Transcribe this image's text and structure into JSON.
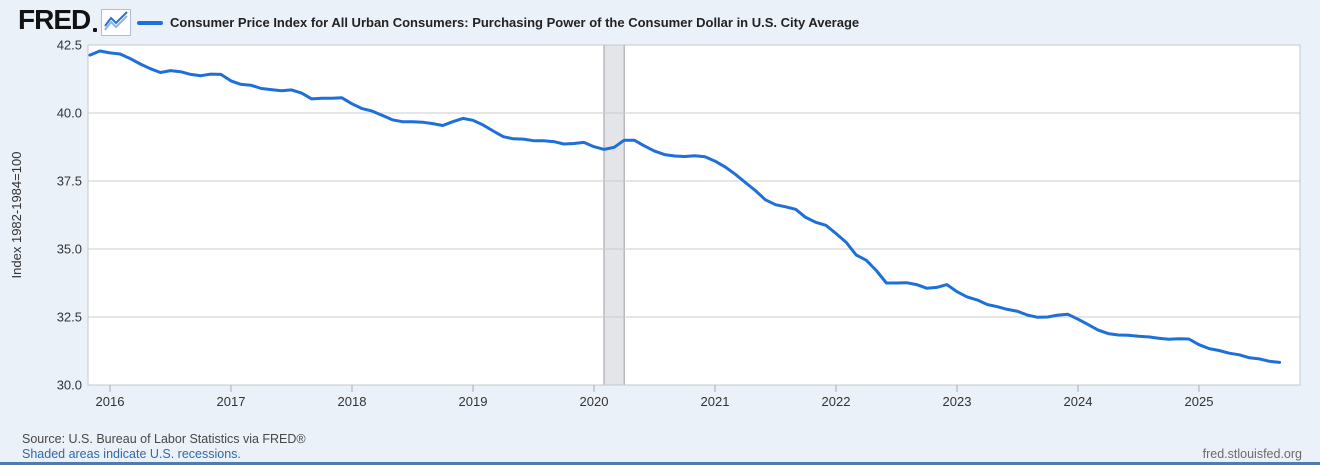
{
  "header": {
    "logo_text": "FRED",
    "series_title": "Consumer Price Index for All Urban Consumers: Purchasing Power of the Consumer Dollar in U.S. City Average"
  },
  "footer": {
    "source": "Source: U.S. Bureau of Labor Statistics via FRED®",
    "recession_note": "Shaded areas indicate U.S. recessions.",
    "site_url": "fred.stlouisfed.org"
  },
  "colors": {
    "background": "#ebf1f9",
    "plot_bg": "#ffffff",
    "grid": "#cccccc",
    "plot_border": "#c5c9cd",
    "axis_tick": "#a9adb1",
    "line": "#1e6fd9",
    "recession_fill": "#e3e5e8",
    "recession_edge": "#b6b9bd",
    "link": "#3567a9",
    "bottom_bar": "#4f7cae",
    "text": "#333333"
  },
  "chart_data": {
    "type": "line",
    "title": "Consumer Price Index for All Urban Consumers: Purchasing Power of the Consumer Dollar in U.S. City Average",
    "xlabel": "",
    "ylabel": "Index 1982-1984=100",
    "legend_position": "top-left",
    "grid": true,
    "xlim": [
      2015.818,
      2025.835
    ],
    "ylim": [
      30.0,
      42.5
    ],
    "x_ticks": [
      2016,
      2017,
      2018,
      2019,
      2020,
      2021,
      2022,
      2023,
      2024,
      2025
    ],
    "y_ticks": [
      42.5,
      40.0,
      37.5,
      35.0,
      32.5,
      30.0
    ],
    "recession_bands": [
      {
        "start": 2020.083,
        "end": 2020.25
      }
    ],
    "series": [
      {
        "name": "Consumer Price Index for All Urban Consumers: Purchasing Power of the Consumer Dollar in U.S. City Average",
        "color": "#1e6fd9",
        "frequency": "monthly",
        "start_year": 2015,
        "start_month": 11,
        "values": [
          42.13,
          42.28,
          42.21,
          42.17,
          42.0,
          41.8,
          41.63,
          41.49,
          41.56,
          41.52,
          41.42,
          41.37,
          41.43,
          41.42,
          41.18,
          41.05,
          41.02,
          40.9,
          40.86,
          40.82,
          40.85,
          40.73,
          40.52,
          40.54,
          40.54,
          40.56,
          40.34,
          40.16,
          40.07,
          39.91,
          39.75,
          39.68,
          39.68,
          39.66,
          39.61,
          39.54,
          39.68,
          39.8,
          39.73,
          39.56,
          39.34,
          39.13,
          39.05,
          39.04,
          38.98,
          38.98,
          38.95,
          38.86,
          38.88,
          38.92,
          38.76,
          38.66,
          38.74,
          39.0,
          39.0,
          38.79,
          38.6,
          38.47,
          38.42,
          38.4,
          38.43,
          38.39,
          38.23,
          38.02,
          37.75,
          37.45,
          37.15,
          36.81,
          36.63,
          36.55,
          36.46,
          36.16,
          35.98,
          35.87,
          35.57,
          35.25,
          34.78,
          34.59,
          34.21,
          33.75,
          33.75,
          33.76,
          33.69,
          33.56,
          33.59,
          33.69,
          33.43,
          33.24,
          33.13,
          32.96,
          32.88,
          32.78,
          32.71,
          32.57,
          32.49,
          32.5,
          32.57,
          32.6,
          32.42,
          32.22,
          32.02,
          31.89,
          31.84,
          31.83,
          31.79,
          31.77,
          31.72,
          31.68,
          31.7,
          31.69,
          31.48,
          31.34,
          31.27,
          31.17,
          31.11,
          31.0,
          30.96,
          30.87,
          30.83
        ]
      }
    ]
  }
}
